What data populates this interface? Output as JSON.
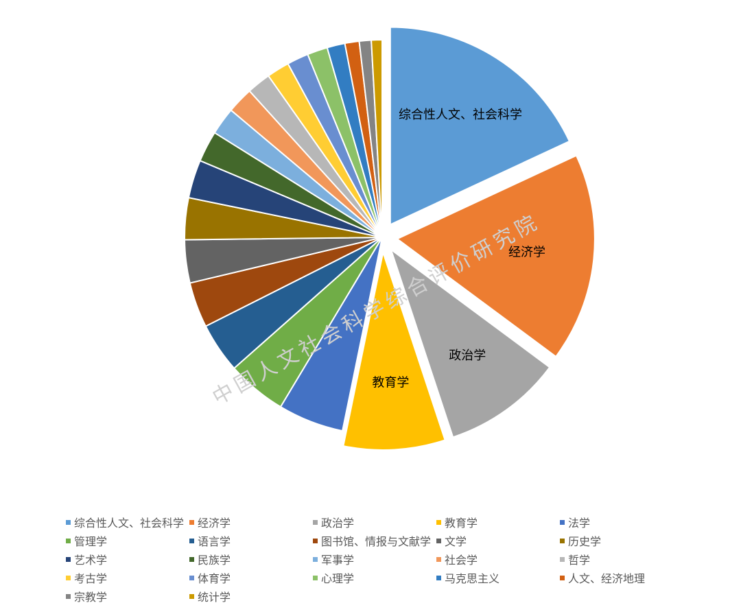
{
  "watermark": "中国人文社会科学综合评价研究院",
  "chart_data": {
    "type": "pie",
    "title": "",
    "start_angle_deg": 0,
    "exploded": [
      "综合性人文、社会科学",
      "经济学",
      "政治学",
      "教育学"
    ],
    "slices": [
      {
        "name": "综合性人文、社会科学",
        "value": 18.5,
        "color": "#5b9bd5",
        "show_label": true
      },
      {
        "name": "经济学",
        "value": 17.5,
        "color": "#ed7d31",
        "show_label": true
      },
      {
        "name": "政治学",
        "value": 10.0,
        "color": "#a5a5a5",
        "show_label": true
      },
      {
        "name": "教育学",
        "value": 8.5,
        "color": "#ffc000",
        "show_label": true
      },
      {
        "name": "法学",
        "value": 5.5,
        "color": "#4472c4",
        "show_label": false
      },
      {
        "name": "管理学",
        "value": 5.0,
        "color": "#70ad47",
        "show_label": false
      },
      {
        "name": "语言学",
        "value": 4.2,
        "color": "#255e91",
        "show_label": false
      },
      {
        "name": "图书馆、情报与文献学",
        "value": 3.8,
        "color": "#9e480e",
        "show_label": false
      },
      {
        "name": "文学",
        "value": 3.6,
        "color": "#636363",
        "show_label": false
      },
      {
        "name": "历史学",
        "value": 3.5,
        "color": "#997300",
        "show_label": false
      },
      {
        "name": "艺术学",
        "value": 3.2,
        "color": "#264478",
        "show_label": false
      },
      {
        "name": "民族学",
        "value": 2.6,
        "color": "#43682b",
        "show_label": false
      },
      {
        "name": "军事学",
        "value": 2.3,
        "color": "#7cafdd",
        "show_label": false
      },
      {
        "name": "社会学",
        "value": 2.2,
        "color": "#f1975a",
        "show_label": false
      },
      {
        "name": "哲学",
        "value": 2.0,
        "color": "#b7b7b7",
        "show_label": false
      },
      {
        "name": "考古学",
        "value": 1.9,
        "color": "#ffcd33",
        "show_label": false
      },
      {
        "name": "体育学",
        "value": 1.8,
        "color": "#698ed0",
        "show_label": false
      },
      {
        "name": "心理学",
        "value": 1.7,
        "color": "#8cc168",
        "show_label": false
      },
      {
        "name": "马克思主义",
        "value": 1.5,
        "color": "#327dc2",
        "show_label": false
      },
      {
        "name": "人文、经济地理",
        "value": 1.2,
        "color": "#d26012",
        "show_label": false
      },
      {
        "name": "宗教学",
        "value": 1.0,
        "color": "#848484",
        "show_label": false
      },
      {
        "name": "统计学",
        "value": 0.9,
        "color": "#cc9a00",
        "show_label": false
      }
    ],
    "legend": {
      "position": "bottom"
    }
  }
}
